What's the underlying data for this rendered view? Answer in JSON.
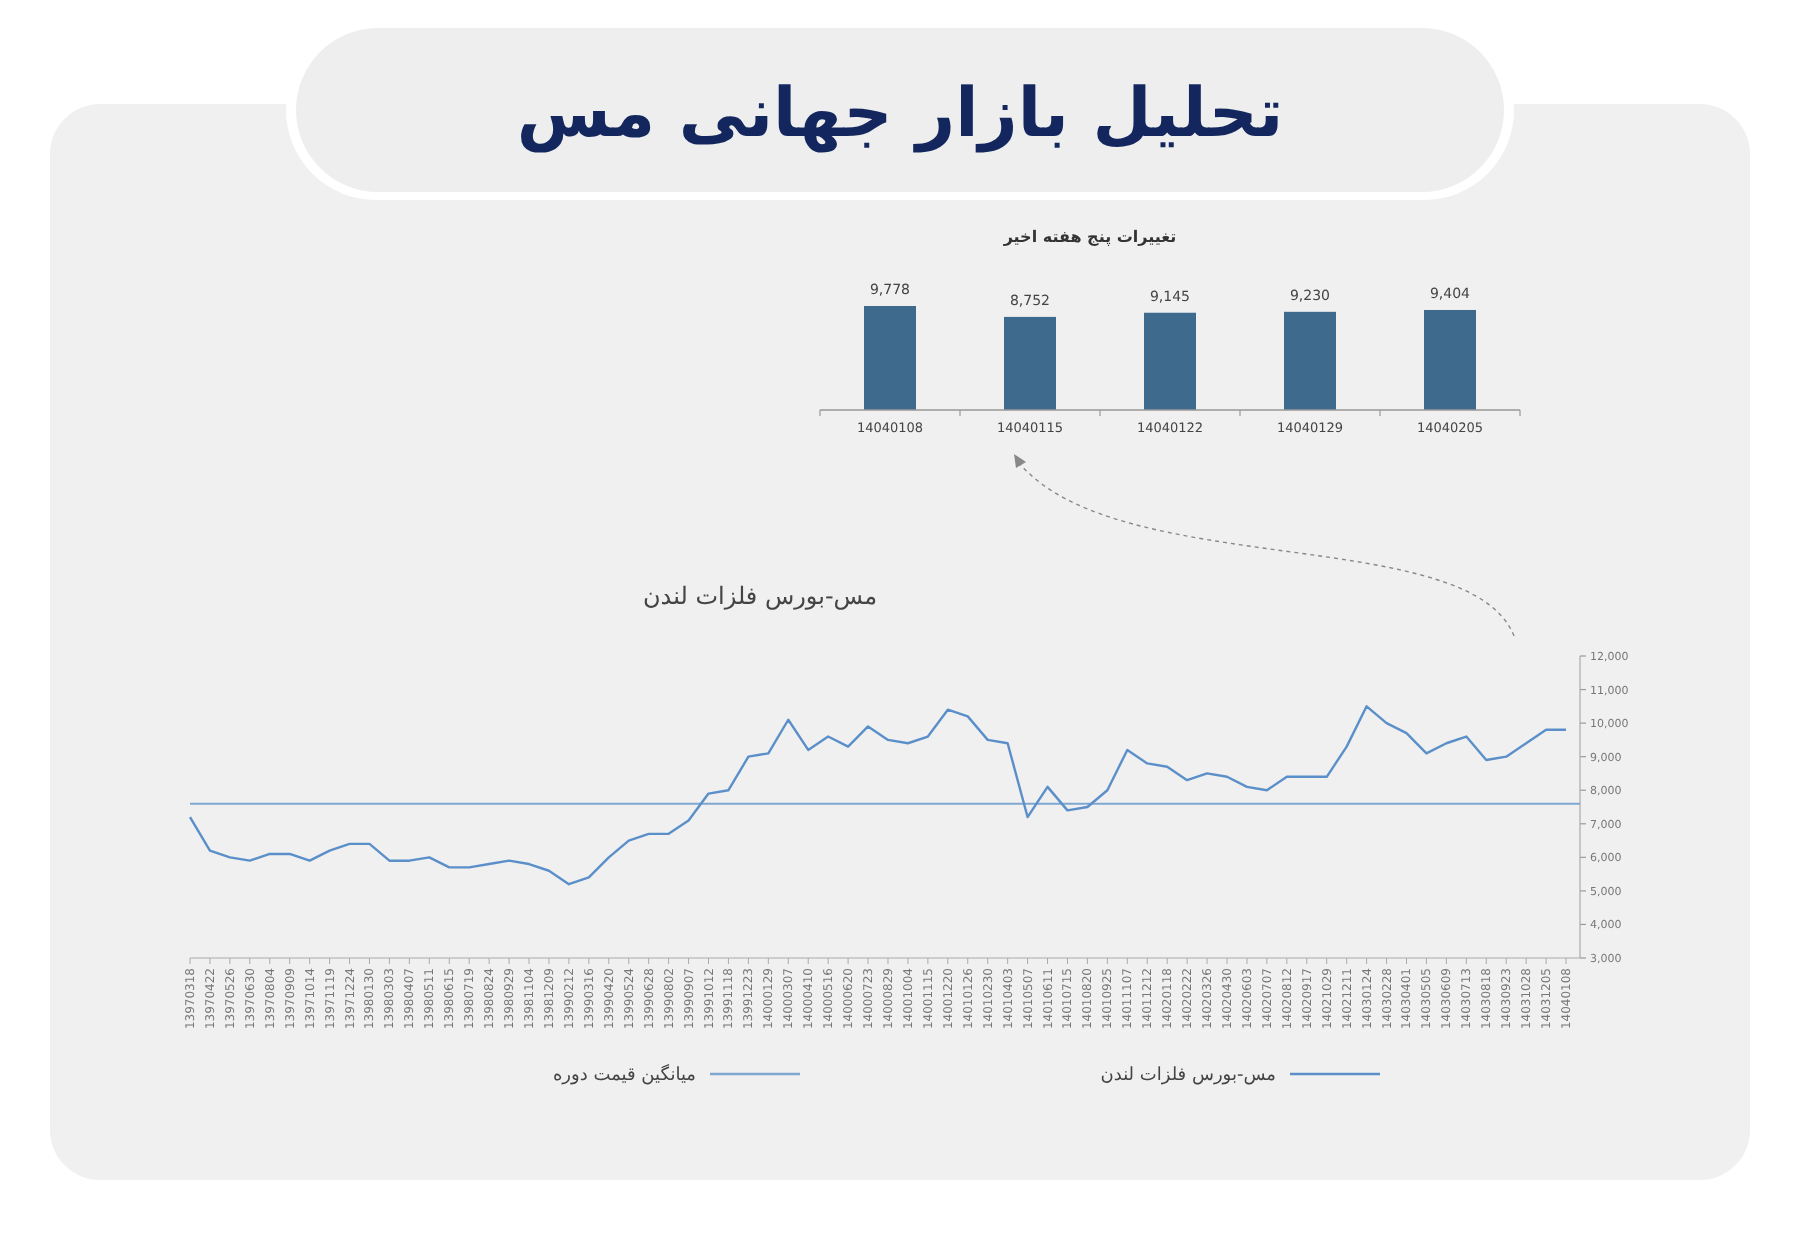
{
  "chart_data": [
    {
      "type": "bar",
      "title": "تحلیل بازار جهانی مس",
      "subtitle": "تغییرات پنج هفته اخیر",
      "categories": [
        "14040108",
        "14040115",
        "14040122",
        "14040129",
        "14040205"
      ],
      "values": [
        9778,
        8752,
        9145,
        9230,
        9404
      ],
      "value_labels": [
        "9,778",
        "8,752",
        "9,145",
        "9,230",
        "9,404"
      ],
      "color": "#3e6a8e"
    },
    {
      "type": "line",
      "title": "مس-بورس فلزات لندن",
      "categories": [
        "13970318",
        "13970422",
        "13970526",
        "13970630",
        "13970804",
        "13970909",
        "13971014",
        "13971119",
        "13971224",
        "13980130",
        "13980303",
        "13980407",
        "13980511",
        "13980615",
        "13980719",
        "13980824",
        "13980929",
        "13981104",
        "13981209",
        "13990212",
        "13990316",
        "13990420",
        "13990524",
        "13990628",
        "13990802",
        "13990907",
        "13991012",
        "13991118",
        "13991223",
        "14000129",
        "14000307",
        "14000410",
        "14000516",
        "14000620",
        "14000723",
        "14000829",
        "14001004",
        "14001115",
        "14001220",
        "14010126",
        "14010230",
        "14010403",
        "14010507",
        "14010611",
        "14010715",
        "14010820",
        "14010925",
        "14011107",
        "14011212",
        "14020118",
        "14020222",
        "14020326",
        "14020430",
        "14020603",
        "14020707",
        "14020812",
        "14020917",
        "14021029",
        "14021211",
        "14030124",
        "14030228",
        "14030401",
        "14030505",
        "14030609",
        "14030713",
        "14030818",
        "14030923",
        "14031028",
        "14031205",
        "14040108"
      ],
      "series": [
        {
          "name": "مس-بورس فلزات لندن",
          "color": "#5b8fc9",
          "values": [
            7200,
            6200,
            6000,
            5900,
            6100,
            6100,
            5900,
            6200,
            6400,
            6400,
            5900,
            5900,
            6000,
            5700,
            5700,
            5800,
            5900,
            5800,
            5600,
            5200,
            5400,
            6000,
            6500,
            6700,
            6700,
            7100,
            7900,
            8000,
            9000,
            9100,
            10100,
            9200,
            9600,
            9300,
            9900,
            9500,
            9400,
            9600,
            10400,
            10200,
            9500,
            9400,
            7200,
            8100,
            7400,
            7500,
            8000,
            9200,
            8800,
            8700,
            8300,
            8500,
            8400,
            8100,
            8000,
            8400,
            8400,
            8400,
            9300,
            10500,
            10000,
            9700,
            9100,
            9400,
            9600,
            8900,
            9000,
            9400,
            9800,
            9800
          ]
        }
      ],
      "ref_lines": [
        {
          "axis": "y",
          "value": 7600,
          "label": "میانگین قیمت دوره",
          "color": "#7fa7d0"
        }
      ],
      "ylim": [
        3000,
        12000
      ],
      "yticks": [
        {
          "value": 3000,
          "label": "3,000"
        },
        {
          "value": 4000,
          "label": "4,000"
        },
        {
          "value": 5000,
          "label": "5,000"
        },
        {
          "value": 6000,
          "label": "6,000"
        },
        {
          "value": 7000,
          "label": "7,000"
        },
        {
          "value": 8000,
          "label": "8,000"
        },
        {
          "value": 9000,
          "label": "9,000"
        },
        {
          "value": 10000,
          "label": "10,000"
        },
        {
          "value": 11000,
          "label": "11,000"
        },
        {
          "value": 12000,
          "label": "12,000"
        }
      ],
      "legend": "bottom"
    }
  ]
}
